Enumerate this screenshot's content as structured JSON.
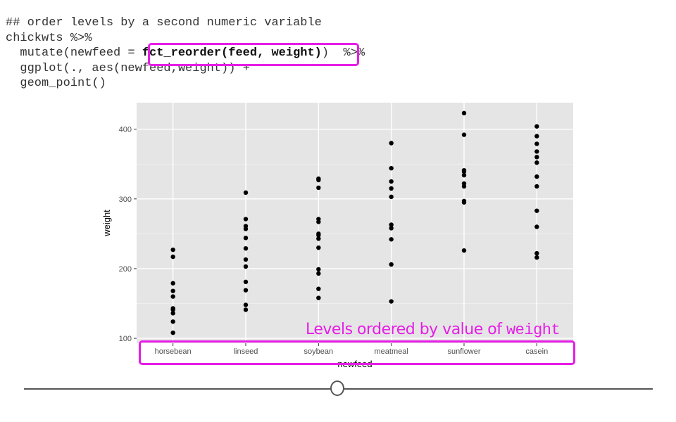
{
  "code": {
    "line1": "## order levels by a second numeric variable",
    "line2": "chickwts %>%",
    "line3_pre": "  mutate(newfeed = ",
    "line3_hl": "fct_reorder(feed, weight)",
    "line3_post": ")  %>%",
    "line4": "  ggplot(., aes(newfeed,weight)) +",
    "line5": "  geom_point()"
  },
  "annotation": {
    "text": "Levels ordered by value of ",
    "var": "weight"
  },
  "colors": {
    "highlight": "#e61ee6",
    "panel_bg": "#e5e5e5",
    "point": "#000000"
  },
  "chart_data": {
    "type": "scatter",
    "xlabel": "newfeed",
    "ylabel": "weight",
    "ylim": [
      93,
      438
    ],
    "yticks": [
      100,
      200,
      300,
      400
    ],
    "categories": [
      "horsebean",
      "linseed",
      "soybean",
      "meatmeal",
      "sunflower",
      "casein"
    ],
    "values": [
      [
        227,
        217,
        179,
        168,
        160,
        143,
        141,
        136,
        124,
        108
      ],
      [
        309,
        271,
        261,
        257,
        244,
        229,
        213,
        203,
        181,
        169,
        148,
        141
      ],
      [
        329,
        327,
        316,
        271,
        267,
        250,
        248,
        243,
        230,
        199,
        193,
        171,
        158
      ],
      [
        380,
        344,
        325,
        315,
        303,
        263,
        258,
        242,
        206,
        153
      ],
      [
        423,
        392,
        341,
        339,
        334,
        322,
        318,
        297,
        295,
        226
      ],
      [
        404,
        390,
        379,
        368,
        360,
        352,
        332,
        318,
        283,
        260,
        222,
        216
      ]
    ],
    "grid": true
  }
}
